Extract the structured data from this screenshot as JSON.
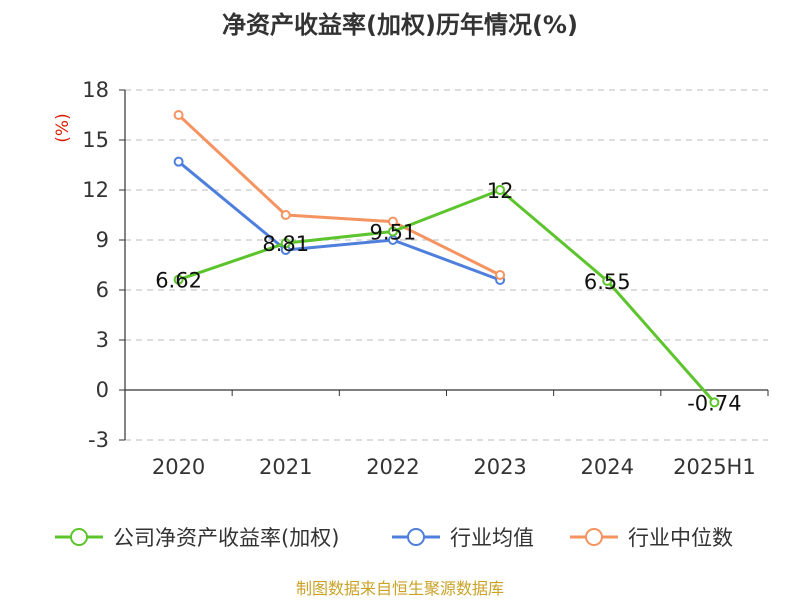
{
  "chart_data": {
    "type": "line",
    "title": "净资产收益率(加权)历年情况(%)",
    "ylabel": "(%)",
    "xlabel": "",
    "categories": [
      "2020",
      "2021",
      "2022",
      "2023",
      "2024",
      "2025H1"
    ],
    "ylim": [
      -3,
      18
    ],
    "yticks": [
      -3,
      0,
      3,
      6,
      9,
      12,
      15,
      18
    ],
    "grid": true,
    "legend_position": "bottom",
    "series": [
      {
        "name": "公司净资产收益率(加权)",
        "color": "#5cc42c",
        "values": [
          6.62,
          8.81,
          9.51,
          12,
          6.55,
          -0.74
        ],
        "labels": [
          "6.62",
          "8.81",
          "9.51",
          "12",
          "6.55",
          "-0.74"
        ]
      },
      {
        "name": "行业均值",
        "color": "#4f7fdc",
        "values": [
          13.7,
          8.4,
          9.0,
          6.6,
          null,
          null
        ]
      },
      {
        "name": "行业中位数",
        "color": "#f59461",
        "values": [
          16.5,
          10.5,
          10.1,
          6.9,
          null,
          null
        ]
      }
    ]
  },
  "source": "制图数据来自恒生聚源数据库"
}
